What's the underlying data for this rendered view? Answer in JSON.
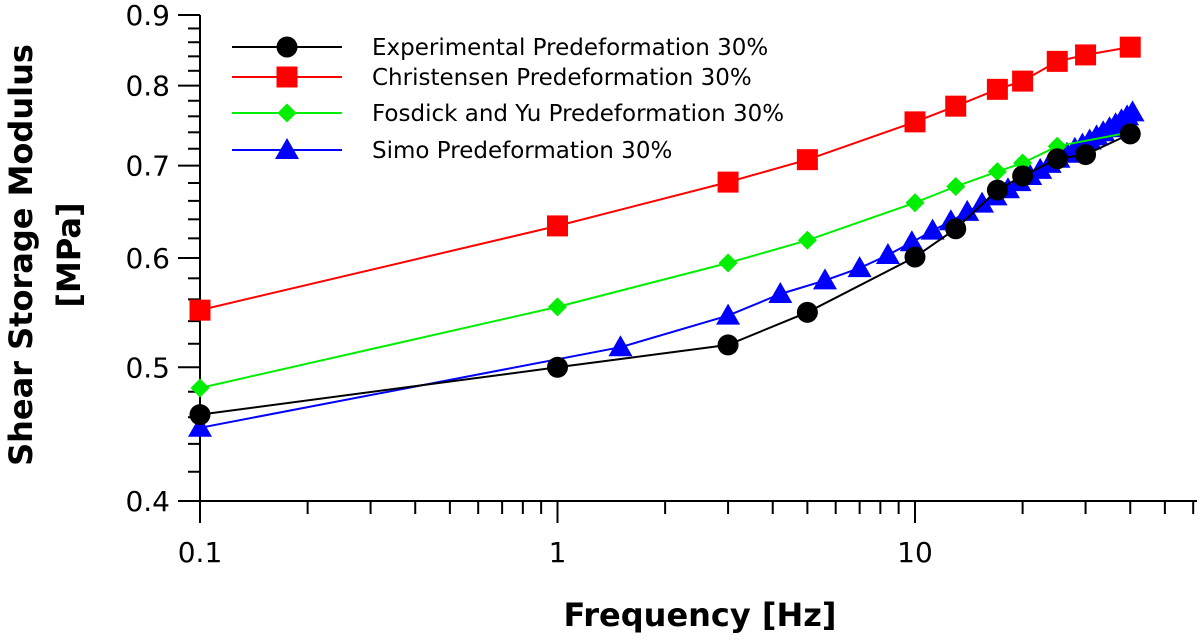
{
  "chart_data": {
    "type": "line",
    "title": "",
    "xlabel": "Frequency [Hz]",
    "ylabel_lines": [
      "Shear Storage Modulus",
      "[MPa]"
    ],
    "xscale": "log",
    "yscale": "log",
    "xlim": [
      0.1,
      70
    ],
    "ylim": [
      0.4,
      0.9
    ],
    "x_ticks": [
      {
        "value": 0.1,
        "label": "0.1"
      },
      {
        "value": 1,
        "label": "1"
      },
      {
        "value": 10,
        "label": "10"
      }
    ],
    "y_ticks": [
      {
        "value": 0.4,
        "label": "0.4"
      },
      {
        "value": 0.5,
        "label": "0.5"
      },
      {
        "value": 0.6,
        "label": "0.6"
      },
      {
        "value": 0.7,
        "label": "0.7"
      },
      {
        "value": 0.8,
        "label": "0.8"
      },
      {
        "value": 0.9,
        "label": "0.9"
      }
    ],
    "grid": false,
    "legend_position": "top-left",
    "series": [
      {
        "name": "Experimental Predeformation 30%",
        "color": "#000000",
        "marker": "circle",
        "x": [
          0.1,
          1,
          3,
          5,
          10,
          13,
          17,
          20,
          25,
          30,
          40
        ],
        "y": [
          0.462,
          0.5,
          0.519,
          0.548,
          0.601,
          0.63,
          0.672,
          0.688,
          0.708,
          0.713,
          0.738
        ]
      },
      {
        "name": "Christensen Predeformation 30%",
        "color": "#ff0000",
        "marker": "square",
        "x": [
          0.1,
          1,
          3,
          5,
          10,
          13,
          17,
          20,
          25,
          30,
          40
        ],
        "y": [
          0.55,
          0.633,
          0.681,
          0.707,
          0.753,
          0.773,
          0.795,
          0.806,
          0.833,
          0.842,
          0.853
        ]
      },
      {
        "name": "Fosdick and Yu Predeformation 30%",
        "color": "#00ee00",
        "marker": "diamond",
        "x": [
          0.1,
          1,
          3,
          5,
          10,
          13,
          17,
          20,
          25,
          40
        ],
        "y": [
          0.483,
          0.553,
          0.595,
          0.618,
          0.658,
          0.676,
          0.693,
          0.703,
          0.723,
          0.74
        ]
      },
      {
        "name": "Simo Predeformation 30%",
        "color": "#0000ff",
        "marker": "triangle",
        "x": [
          0.1,
          1.5,
          3,
          4.2,
          5.6,
          7,
          8.4,
          9.8,
          11.2,
          12.6,
          14,
          15.4,
          16.8,
          18.2,
          19.6,
          21,
          22.4,
          23.8,
          25.2,
          26.6,
          28,
          29.4,
          30.8,
          32.2,
          33.6,
          35,
          36.4,
          37.8,
          39.2,
          40.6
        ],
        "y": [
          0.452,
          0.517,
          0.545,
          0.565,
          0.578,
          0.59,
          0.603,
          0.616,
          0.628,
          0.638,
          0.648,
          0.657,
          0.665,
          0.673,
          0.681,
          0.688,
          0.695,
          0.702,
          0.708,
          0.714,
          0.72,
          0.725,
          0.73,
          0.735,
          0.74,
          0.745,
          0.75,
          0.755,
          0.76,
          0.765
        ]
      }
    ]
  }
}
